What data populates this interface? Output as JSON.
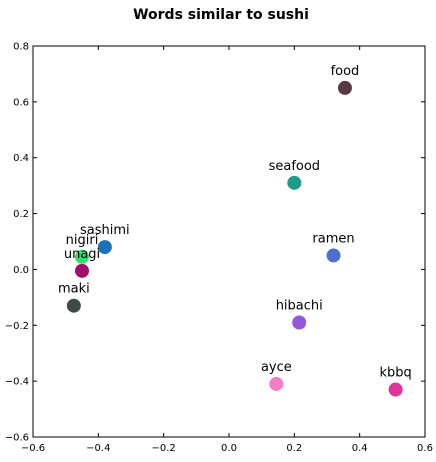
{
  "chart_data": {
    "type": "scatter",
    "title": "Words similar to sushi",
    "xlabel": "",
    "ylabel": "",
    "xlim": [
      -0.6,
      0.6
    ],
    "ylim": [
      -0.6,
      0.8
    ],
    "x_ticks": [
      "−0.6",
      "−0.4",
      "−0.2",
      "0.0",
      "0.2",
      "0.4",
      "0.6"
    ],
    "y_ticks": [
      "−0.6",
      "−0.4",
      "−0.2",
      "0.0",
      "0.2",
      "0.4",
      "0.6",
      "0.8"
    ],
    "grid": false,
    "points": [
      {
        "label": "food",
        "x": 0.355,
        "y": 0.65,
        "color": "#5a3a42"
      },
      {
        "label": "seafood",
        "x": 0.2,
        "y": 0.31,
        "color": "#1e9c88"
      },
      {
        "label": "sashimi",
        "x": -0.38,
        "y": 0.08,
        "color": "#1a73b8"
      },
      {
        "label": "nigiri",
        "x": -0.45,
        "y": 0.045,
        "color": "#2ee06e"
      },
      {
        "label": "unagi",
        "x": -0.45,
        "y": -0.005,
        "color": "#a0106a"
      },
      {
        "label": "ramen",
        "x": 0.32,
        "y": 0.05,
        "color": "#4a72cc"
      },
      {
        "label": "maki",
        "x": -0.475,
        "y": -0.13,
        "color": "#3f4a48"
      },
      {
        "label": "hibachi",
        "x": 0.215,
        "y": -0.19,
        "color": "#9556d8"
      },
      {
        "label": "ayce",
        "x": 0.145,
        "y": -0.41,
        "color": "#f47ec6"
      },
      {
        "label": "kbbq",
        "x": 0.51,
        "y": -0.43,
        "color": "#e0349c"
      }
    ]
  }
}
